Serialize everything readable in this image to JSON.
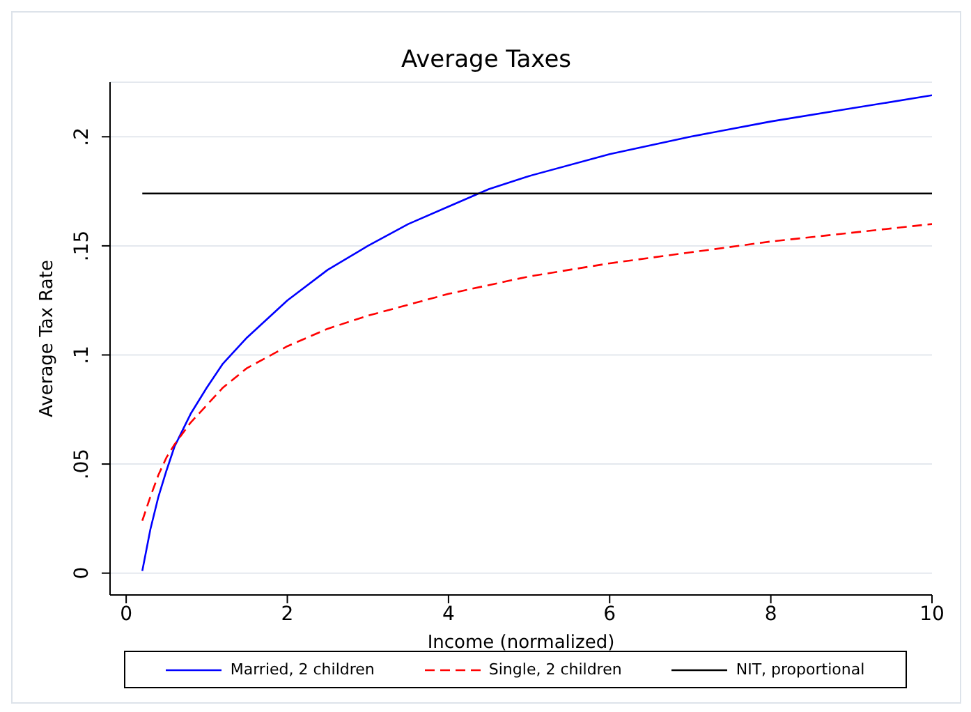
{
  "chart_data": {
    "type": "line",
    "title": "Average Taxes",
    "xlabel": "Income (normalized)",
    "ylabel": "Average Tax Rate",
    "xlim": [
      -0.2,
      10
    ],
    "xticks": [
      0,
      2,
      4,
      6,
      8,
      10
    ],
    "ylim": [
      -0.01,
      0.225
    ],
    "yticks": [
      0,
      {
        "value": 0.05,
        "label": ".05"
      },
      {
        "value": 0.1,
        "label": ".1"
      },
      {
        "value": 0.15,
        "label": ".15"
      },
      {
        "value": 0.2,
        "label": ".2"
      }
    ],
    "grid": "y",
    "legend": "bottom",
    "marker": "none",
    "series": [
      {
        "name": "Married, 2 children",
        "color": "#0000ff",
        "line_style": "solid",
        "x": [
          0.2,
          0.3,
          0.4,
          0.5,
          0.6,
          0.8,
          1,
          1.2,
          1.5,
          2,
          2.5,
          3,
          3.5,
          4,
          4.5,
          5,
          6,
          7,
          8,
          9,
          10
        ],
        "values": [
          0.001,
          0.02,
          0.035,
          0.047,
          0.058,
          0.073,
          0.085,
          0.096,
          0.108,
          0.125,
          0.139,
          0.15,
          0.16,
          0.168,
          0.176,
          0.182,
          0.192,
          0.2,
          0.207,
          0.213,
          0.219
        ]
      },
      {
        "name": "Single, 2 children",
        "color": "#ff0000",
        "line_style": "dashed",
        "x": [
          0.2,
          0.3,
          0.4,
          0.5,
          0.6,
          0.8,
          1,
          1.2,
          1.5,
          2,
          2.5,
          3,
          3.5,
          4,
          5,
          6,
          7,
          8,
          9,
          10
        ],
        "values": [
          0.024,
          0.035,
          0.045,
          0.053,
          0.059,
          0.069,
          0.077,
          0.085,
          0.094,
          0.104,
          0.112,
          0.118,
          0.123,
          0.128,
          0.136,
          0.142,
          0.147,
          0.152,
          0.156,
          0.16
        ]
      },
      {
        "name": "NIT, proportional",
        "color": "#000000",
        "line_style": "solid",
        "x": [
          0.2,
          10
        ],
        "values": [
          0.174,
          0.174
        ]
      }
    ]
  }
}
